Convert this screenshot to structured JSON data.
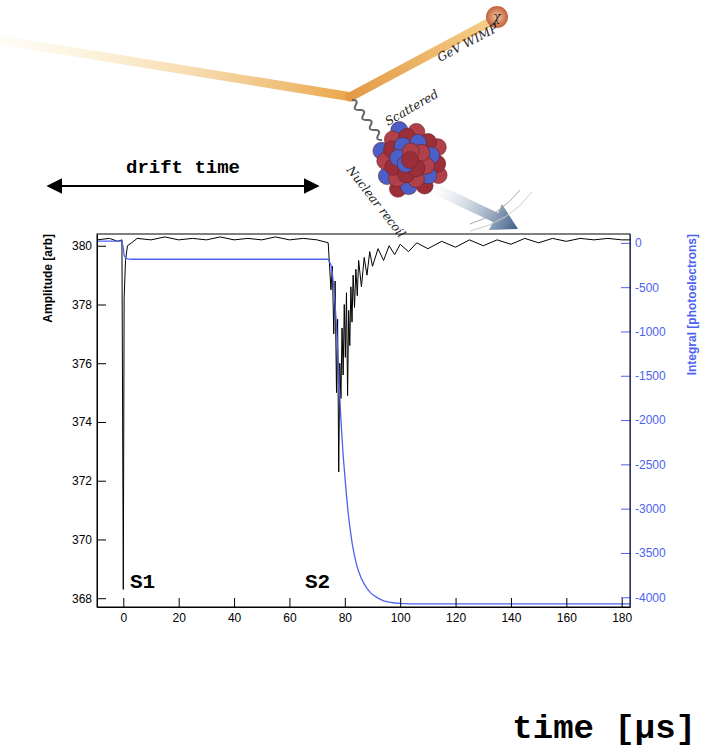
{
  "illustration": {
    "particle": "χ",
    "labels": [
      "GeV WIMP",
      "Scattered",
      "Nuclear recoil"
    ]
  },
  "chart_data": {
    "type": "line",
    "x_label": "time [µs]",
    "y_label": "Amplitude [arb]",
    "y2_label": "Integral [photoelectrons]",
    "annotations": [
      "drift time",
      "S1",
      "S2"
    ],
    "x": [
      -9.5,
      -5,
      -2,
      -0.5,
      0,
      0.3,
      0.8,
      1.5,
      3,
      5,
      10,
      15,
      20,
      25,
      30,
      35,
      40,
      45,
      50,
      55,
      60,
      65,
      70,
      74,
      75,
      75.5,
      76,
      76.5,
      77,
      77.4,
      77.8,
      78.2,
      78.6,
      79,
      79.4,
      79.8,
      80.2,
      80.6,
      81,
      81.4,
      81.8,
      82.2,
      82.6,
      83,
      83.5,
      84,
      84.5,
      85,
      86,
      87,
      88,
      89,
      90,
      92,
      94,
      96,
      98,
      100,
      103,
      106,
      110,
      115,
      120,
      125,
      130,
      135,
      140,
      145,
      150,
      155,
      160,
      165,
      170,
      175,
      180,
      183
    ],
    "xlim": [
      -9.5,
      183
    ],
    "xticks": [
      0,
      20,
      40,
      60,
      80,
      100,
      120,
      140,
      160,
      180
    ],
    "ylim": [
      367.7,
      380.4
    ],
    "yticks": [
      368,
      370,
      372,
      374,
      376,
      378,
      380
    ],
    "y2lim": [
      -4110,
      100
    ],
    "y2ticks": [
      0,
      -500,
      -1000,
      -1500,
      -2000,
      -2500,
      -3000,
      -3500,
      -4000
    ],
    "series": [
      {
        "color": "#000000",
        "values": [
          380.2,
          380.25,
          380.15,
          380.2,
          368.3,
          378.2,
          379.5,
          380.0,
          380.1,
          380.25,
          380.2,
          380.3,
          380.2,
          380.25,
          380.2,
          380.3,
          380.2,
          380.25,
          380.2,
          380.3,
          380.2,
          380.25,
          380.2,
          380.1,
          378.5,
          379.3,
          377.0,
          378.8,
          375.0,
          377.5,
          372.3,
          376.0,
          374.8,
          377.2,
          375.6,
          378.0,
          376.2,
          378.4,
          374.9,
          377.8,
          376.6,
          378.6,
          377.4,
          379.0,
          377.9,
          379.2,
          378.3,
          379.5,
          378.6,
          379.6,
          379.0,
          379.8,
          379.3,
          379.9,
          379.5,
          380.0,
          379.7,
          380.05,
          379.8,
          380.1,
          379.9,
          380.15,
          379.95,
          380.2,
          380.0,
          380.2,
          380.05,
          380.25,
          380.1,
          380.25,
          380.15,
          380.25,
          380.2,
          380.25,
          380.2,
          380.2
        ]
      },
      {
        "color": "#4d63f0",
        "axis": "y2",
        "values": [
          20,
          20,
          20,
          20,
          -60,
          -140,
          -170,
          -180,
          -185,
          -185,
          -185,
          -185,
          -185,
          -185,
          -185,
          -185,
          -185,
          -185,
          -185,
          -185,
          -185,
          -185,
          -185,
          -185,
          -250,
          -350,
          -500,
          -700,
          -950,
          -1200,
          -1500,
          -1750,
          -2000,
          -2200,
          -2400,
          -2550,
          -2700,
          -2850,
          -2980,
          -3100,
          -3200,
          -3290,
          -3380,
          -3450,
          -3530,
          -3600,
          -3660,
          -3710,
          -3790,
          -3850,
          -3900,
          -3940,
          -3970,
          -4010,
          -4040,
          -4055,
          -4065,
          -4070,
          -4075,
          -4075,
          -4075,
          -4075,
          -4075,
          -4075,
          -4075,
          -4075,
          -4075,
          -4075,
          -4075,
          -4075,
          -4075,
          -4075,
          -4075,
          -4075,
          -4075,
          -4075
        ]
      }
    ]
  }
}
